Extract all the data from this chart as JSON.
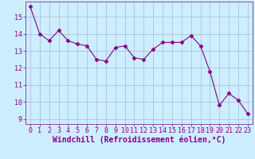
{
  "x": [
    0,
    1,
    2,
    3,
    4,
    5,
    6,
    7,
    8,
    9,
    10,
    11,
    12,
    13,
    14,
    15,
    16,
    17,
    18,
    19,
    20,
    21,
    22,
    23
  ],
  "y": [
    15.6,
    14.0,
    13.6,
    14.2,
    13.6,
    13.4,
    13.3,
    12.5,
    12.4,
    13.2,
    13.3,
    12.6,
    12.5,
    13.1,
    13.5,
    13.5,
    13.5,
    13.9,
    13.3,
    11.8,
    9.8,
    10.5,
    10.1,
    9.3
  ],
  "line_color": "#880088",
  "marker": "D",
  "markersize": 2.5,
  "linewidth": 0.8,
  "xlabel": "Windchill (Refroidissement éolien,°C)",
  "xlim": [
    -0.5,
    23.5
  ],
  "ylim": [
    8.7,
    15.9
  ],
  "yticks": [
    9,
    10,
    11,
    12,
    13,
    14,
    15
  ],
  "xticks": [
    0,
    1,
    2,
    3,
    4,
    5,
    6,
    7,
    8,
    9,
    10,
    11,
    12,
    13,
    14,
    15,
    16,
    17,
    18,
    19,
    20,
    21,
    22,
    23
  ],
  "bg_color": "#cceeff",
  "grid_color": "#aabbcc",
  "font_color": "#880088",
  "tick_fontsize": 6.0,
  "xlabel_fontsize": 7.0
}
